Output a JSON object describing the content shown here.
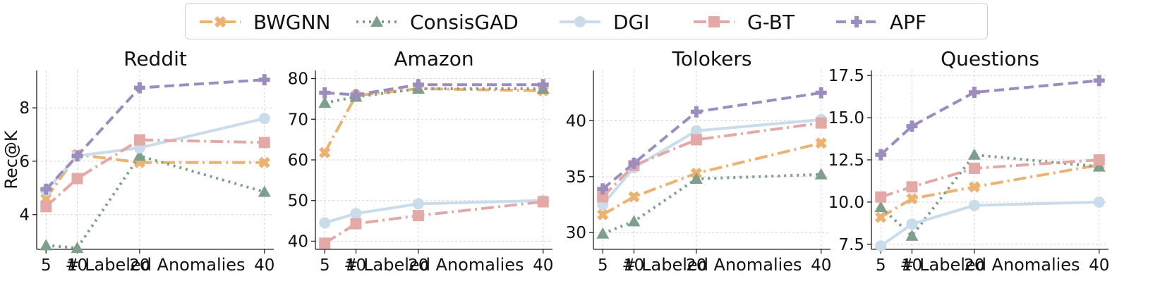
{
  "legend": {
    "series": [
      {
        "name": "BWGNN",
        "color": "#ECB272",
        "dash": "18,6,3,6",
        "marker": "x"
      },
      {
        "name": "ConsisGAD",
        "color": "#7E9F8C",
        "dash": "3,6",
        "marker": "triangle"
      },
      {
        "name": "DGI",
        "color": "#C9DCEC",
        "dash": "",
        "marker": "circle"
      },
      {
        "name": "G-BT",
        "color": "#E2A9A7",
        "dash": "18,6,3,6",
        "marker": "square"
      },
      {
        "name": "APF",
        "color": "#9D8DBF",
        "dash": "14,7",
        "marker": "plus"
      }
    ]
  },
  "chart_data": [
    {
      "type": "line",
      "title": "Reddit",
      "xlabel": "# Labeled Anomalies",
      "ylabel": "Rec@K",
      "x": [
        5,
        10,
        20,
        40
      ],
      "xlim": [
        3.5,
        41.5
      ],
      "ylim": [
        2.7,
        9.4
      ],
      "yticks": [
        4,
        6,
        8
      ],
      "ytick_labels": [
        "4",
        "6",
        "8"
      ],
      "series": [
        {
          "name": "BWGNN",
          "values": [
            4.6,
            6.25,
            5.95,
            5.95
          ]
        },
        {
          "name": "ConsisGAD",
          "values": [
            2.85,
            2.75,
            6.2,
            4.85
          ]
        },
        {
          "name": "DGI",
          "values": [
            4.9,
            6.2,
            6.5,
            7.6
          ]
        },
        {
          "name": "G-BT",
          "values": [
            4.3,
            5.35,
            6.8,
            6.7
          ]
        },
        {
          "name": "APF",
          "values": [
            4.95,
            6.2,
            8.75,
            9.05
          ]
        }
      ]
    },
    {
      "type": "line",
      "title": "Amazon",
      "xlabel": "# Labeled Anomalies",
      "ylabel": "",
      "x": [
        5,
        10,
        20,
        40
      ],
      "xlim": [
        3.5,
        41.5
      ],
      "ylim": [
        38,
        82
      ],
      "yticks": [
        40,
        50,
        60,
        70,
        80
      ],
      "ytick_labels": [
        "40",
        "50",
        "60",
        "70",
        "80"
      ],
      "series": [
        {
          "name": "BWGNN",
          "values": [
            61.8,
            75.8,
            77.5,
            77.0
          ]
        },
        {
          "name": "ConsisGAD",
          "values": [
            74.0,
            75.5,
            77.5,
            77.5
          ]
        },
        {
          "name": "DGI",
          "values": [
            44.5,
            46.8,
            49.2,
            50.0
          ]
        },
        {
          "name": "G-BT",
          "values": [
            39.5,
            44.3,
            46.3,
            49.7
          ]
        },
        {
          "name": "APF",
          "values": [
            76.5,
            76.0,
            78.5,
            78.5
          ]
        }
      ]
    },
    {
      "type": "line",
      "title": "Tolokers",
      "xlabel": "# Labeled Anomalies",
      "ylabel": "",
      "x": [
        5,
        10,
        20,
        40
      ],
      "xlim": [
        3.5,
        41.5
      ],
      "ylim": [
        28.5,
        44.5
      ],
      "yticks": [
        30,
        35,
        40
      ],
      "ytick_labels": [
        "30",
        "35",
        "40"
      ],
      "series": [
        {
          "name": "BWGNN",
          "values": [
            31.6,
            33.2,
            35.3,
            38.0
          ]
        },
        {
          "name": "ConsisGAD",
          "values": [
            29.9,
            31.0,
            34.8,
            35.2
          ]
        },
        {
          "name": "DGI",
          "values": [
            32.5,
            35.8,
            39.1,
            40.1
          ]
        },
        {
          "name": "G-BT",
          "values": [
            33.2,
            36.0,
            38.3,
            39.8
          ]
        },
        {
          "name": "APF",
          "values": [
            33.9,
            36.2,
            40.8,
            42.5
          ]
        }
      ]
    },
    {
      "type": "line",
      "title": "Questions",
      "xlabel": "# Labeled Anomalies",
      "ylabel": "",
      "x": [
        5,
        10,
        20,
        40
      ],
      "xlim": [
        3.5,
        41.5
      ],
      "ylim": [
        7.2,
        17.8
      ],
      "yticks": [
        7.5,
        10.0,
        12.5,
        15.0,
        17.5
      ],
      "ytick_labels": [
        "7.5",
        "10.0",
        "12.5",
        "15.0",
        "17.5"
      ],
      "series": [
        {
          "name": "BWGNN",
          "values": [
            9.1,
            10.2,
            10.9,
            12.2
          ]
        },
        {
          "name": "ConsisGAD",
          "values": [
            9.7,
            8.0,
            12.8,
            12.1
          ]
        },
        {
          "name": "DGI",
          "values": [
            7.4,
            8.7,
            9.8,
            10.0
          ]
        },
        {
          "name": "G-BT",
          "values": [
            10.3,
            10.9,
            12.0,
            12.5
          ]
        },
        {
          "name": "APF",
          "values": [
            12.8,
            14.5,
            16.5,
            17.2
          ]
        }
      ]
    }
  ]
}
